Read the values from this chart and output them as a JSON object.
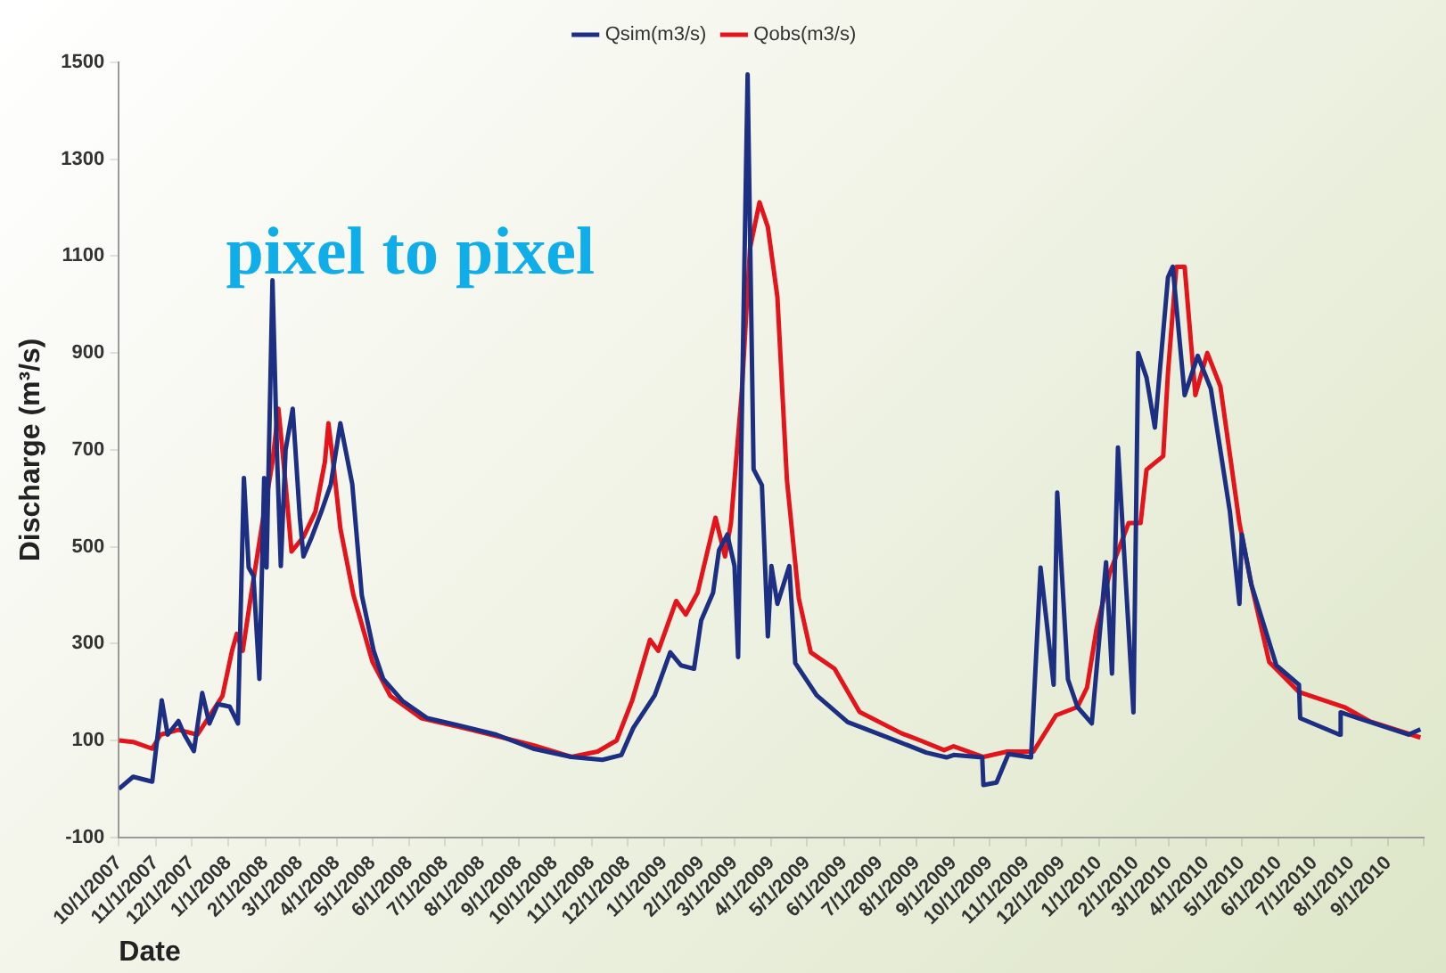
{
  "chart_data": {
    "type": "line",
    "xlabel": "Date",
    "ylabel": "Discharge (m³/s)",
    "annotations": [
      "pixel to pixel"
    ],
    "legend": "top",
    "marker": "none",
    "line_style": "solid",
    "ylim": [
      -100,
      1500
    ],
    "yticks": [
      -100,
      100,
      300,
      500,
      700,
      900,
      1100,
      1300,
      1500
    ],
    "xlim": [
      "2007-10-01",
      "2010-10-01"
    ],
    "xticks": [
      {
        "value": "2007-10-01",
        "label": "10/1/2007"
      },
      {
        "value": "2007-11-01",
        "label": "11/1/2007"
      },
      {
        "value": "2007-12-01",
        "label": "12/1/2007"
      },
      {
        "value": "2008-01-01",
        "label": "1/1/2008"
      },
      {
        "value": "2008-02-01",
        "label": "2/1/2008"
      },
      {
        "value": "2008-03-01",
        "label": "3/1/2008"
      },
      {
        "value": "2008-04-01",
        "label": "4/1/2008"
      },
      {
        "value": "2008-05-01",
        "label": "5/1/2008"
      },
      {
        "value": "2008-06-01",
        "label": "6/1/2008"
      },
      {
        "value": "2008-07-01",
        "label": "7/1/2008"
      },
      {
        "value": "2008-08-01",
        "label": "8/1/2008"
      },
      {
        "value": "2008-09-01",
        "label": "9/1/2008"
      },
      {
        "value": "2008-10-01",
        "label": "10/1/2008"
      },
      {
        "value": "2008-11-01",
        "label": "11/1/2008"
      },
      {
        "value": "2008-12-01",
        "label": "12/1/2008"
      },
      {
        "value": "2009-01-01",
        "label": "1/1/2009"
      },
      {
        "value": "2009-02-01",
        "label": "2/1/2009"
      },
      {
        "value": "2009-03-01",
        "label": "3/1/2009"
      },
      {
        "value": "2009-04-01",
        "label": "4/1/2009"
      },
      {
        "value": "2009-05-01",
        "label": "5/1/2009"
      },
      {
        "value": "2009-06-01",
        "label": "6/1/2009"
      },
      {
        "value": "2009-07-01",
        "label": "7/1/2009"
      },
      {
        "value": "2009-08-01",
        "label": "8/1/2009"
      },
      {
        "value": "2009-09-01",
        "label": "9/1/2009"
      },
      {
        "value": "2009-10-01",
        "label": "10/1/2009"
      },
      {
        "value": "2009-11-01",
        "label": "11/1/2009"
      },
      {
        "value": "2009-12-01",
        "label": "12/1/2009"
      },
      {
        "value": "2010-01-01",
        "label": "1/1/2010"
      },
      {
        "value": "2010-02-01",
        "label": "2/1/2010"
      },
      {
        "value": "2010-03-01",
        "label": "3/1/2010"
      },
      {
        "value": "2010-04-01",
        "label": "4/1/2010"
      },
      {
        "value": "2010-05-01",
        "label": "5/1/2010"
      },
      {
        "value": "2010-06-01",
        "label": "6/1/2010"
      },
      {
        "value": "2010-07-01",
        "label": "7/1/2010"
      },
      {
        "value": "2010-08-01",
        "label": "8/1/2010"
      },
      {
        "value": "2010-09-01",
        "label": "9/1/2010"
      },
      {
        "value": "2010-10-01",
        "label": null
      }
    ],
    "series": [
      {
        "name": "Qsim(m3/s)",
        "color": "#1c2f82",
        "x": [
          "2007-10-01",
          "2007-10-13",
          "2007-10-29",
          "2007-11-06",
          "2007-11-11",
          "2007-11-20",
          "2007-11-25",
          "2007-12-03",
          "2007-12-10",
          "2007-12-16",
          "2007-12-23",
          "2008-01-02",
          "2008-01-09",
          "2008-01-14",
          "2008-01-18",
          "2008-01-22",
          "2008-01-27",
          "2008-01-31",
          "2008-02-02",
          "2008-02-07",
          "2008-02-11",
          "2008-02-14",
          "2008-02-18",
          "2008-02-24",
          "2008-03-01",
          "2008-03-04",
          "2008-03-11",
          "2008-03-19",
          "2008-03-27",
          "2008-04-04",
          "2008-04-14",
          "2008-04-22",
          "2008-05-02",
          "2008-05-10",
          "2008-05-26",
          "2008-06-16",
          "2008-07-11",
          "2008-08-13",
          "2008-09-13",
          "2008-10-15",
          "2008-11-10",
          "2008-11-26",
          "2008-12-06",
          "2008-12-24",
          "2009-01-06",
          "2009-01-15",
          "2009-01-26",
          "2009-02-01",
          "2009-02-11",
          "2009-02-16",
          "2009-02-23",
          "2009-03-01",
          "2009-03-04",
          "2009-03-07",
          "2009-03-12",
          "2009-03-17",
          "2009-03-24",
          "2009-03-29",
          "2009-04-01",
          "2009-04-06",
          "2009-04-16",
          "2009-04-21",
          "2009-05-09",
          "2009-06-04",
          "2009-07-09",
          "2009-08-09",
          "2009-08-26",
          "2009-09-01",
          "2009-09-25",
          "2009-09-26",
          "2009-10-07",
          "2009-10-17",
          "2009-11-05",
          "2009-11-13",
          "2009-11-24",
          "2009-11-27",
          "2009-12-06",
          "2009-12-14",
          "2009-12-26",
          "2010-01-07",
          "2010-01-12",
          "2010-01-17",
          "2010-01-30",
          "2010-02-03",
          "2010-02-10",
          "2010-02-17",
          "2010-02-28",
          "2010-03-04",
          "2010-03-14",
          "2010-03-25",
          "2010-04-05",
          "2010-04-21",
          "2010-04-29",
          "2010-05-01",
          "2010-05-09",
          "2010-05-30",
          "2010-06-18",
          "2010-06-19",
          "2010-07-22",
          "2010-07-23",
          "2010-09-18",
          "2010-09-28"
        ],
        "values": [
          0,
          25,
          15,
          183,
          112,
          140,
          112,
          78,
          198,
          135,
          175,
          170,
          135,
          642,
          457,
          440,
          227,
          642,
          457,
          1050,
          675,
          460,
          700,
          785,
          560,
          480,
          520,
          572,
          629,
          755,
          629,
          400,
          285,
          227,
          182,
          146,
          132,
          112,
          83,
          66,
          60,
          70,
          126,
          193,
          282,
          255,
          248,
          348,
          405,
          493,
          525,
          460,
          272,
          749,
          1475,
          660,
          627,
          315,
          460,
          382,
          460,
          260,
          193,
          138,
          105,
          75,
          65,
          70,
          65,
          8,
          13,
          72,
          65,
          457,
          215,
          612,
          226,
          169,
          135,
          468,
          238,
          705,
          158,
          900,
          849,
          746,
          1056,
          1078,
          813,
          894,
          826,
          572,
          382,
          525,
          422,
          255,
          215,
          146,
          112,
          158,
          112,
          123
        ]
      },
      {
        "name": "Qobs(m3/s)",
        "color": "#e3141b",
        "x": [
          "2007-10-01",
          "2007-10-13",
          "2007-10-29",
          "2007-11-05",
          "2007-11-20",
          "2007-12-06",
          "2007-12-16",
          "2007-12-27",
          "2008-01-04",
          "2008-01-08",
          "2008-01-13",
          "2008-01-20",
          "2008-01-31",
          "2008-02-07",
          "2008-02-12",
          "2008-02-18",
          "2008-02-23",
          "2008-03-04",
          "2008-03-14",
          "2008-03-22",
          "2008-03-25",
          "2008-03-30",
          "2008-04-04",
          "2008-04-15",
          "2008-05-01",
          "2008-05-16",
          "2008-06-11",
          "2008-07-23",
          "2008-09-13",
          "2008-10-15",
          "2008-11-06",
          "2008-11-22",
          "2008-12-05",
          "2008-12-20",
          "2008-12-27",
          "2009-01-11",
          "2009-01-19",
          "2009-01-29",
          "2009-02-13",
          "2009-02-21",
          "2009-02-26",
          "2009-03-07",
          "2009-03-14",
          "2009-03-22",
          "2009-03-29",
          "2009-04-06",
          "2009-04-14",
          "2009-04-24",
          "2009-05-04",
          "2009-05-24",
          "2009-06-14",
          "2009-07-19",
          "2009-08-04",
          "2009-08-24",
          "2009-09-01",
          "2009-09-26",
          "2009-10-16",
          "2009-11-07",
          "2009-11-26",
          "2009-12-14",
          "2009-12-22",
          "2009-12-30",
          "2010-01-10",
          "2010-01-26",
          "2010-02-05",
          "2010-02-10",
          "2010-02-24",
          "2010-02-28",
          "2010-03-07",
          "2010-03-14",
          "2010-03-23",
          "2010-04-02",
          "2010-04-13",
          "2010-04-29",
          "2010-05-09",
          "2010-05-24",
          "2010-06-18",
          "2010-07-26",
          "2010-08-16",
          "2010-09-28"
        ],
        "values": [
          100,
          97,
          83,
          112,
          122,
          112,
          150,
          192,
          285,
          320,
          285,
          400,
          572,
          675,
          785,
          629,
          490,
          520,
          572,
          675,
          755,
          652,
          538,
          400,
          262,
          192,
          146,
          122,
          90,
          66,
          77,
          100,
          182,
          308,
          285,
          388,
          360,
          405,
          560,
          480,
          549,
          816,
          1116,
          1211,
          1160,
          1016,
          638,
          393,
          282,
          248,
          159,
          115,
          100,
          80,
          88,
          66,
          77,
          77,
          152,
          169,
          209,
          330,
          445,
          549,
          549,
          659,
          687,
          859,
          1078,
          1078,
          813,
          900,
          831,
          549,
          422,
          262,
          200,
          169,
          140,
          106
        ]
      }
    ]
  }
}
